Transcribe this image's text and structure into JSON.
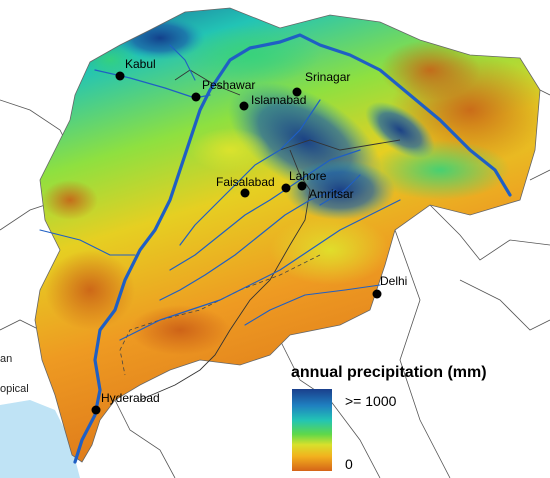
{
  "legend": {
    "title": "annual precipitation (mm)",
    "max_label": ">= 1000",
    "min_label": "0",
    "colors": [
      "#1a3f8c",
      "#1f7fc0",
      "#22c4b5",
      "#3fd86a",
      "#c8e832",
      "#f2c21e",
      "#ee8a20",
      "#d56418"
    ]
  },
  "edge_labels": {
    "left_top": "an",
    "left_mid": "opical"
  },
  "cities": [
    {
      "name": "Kabul"
    },
    {
      "name": "Peshawar"
    },
    {
      "name": "Islamabad"
    },
    {
      "name": "Srinagar"
    },
    {
      "name": "Faisalabad"
    },
    {
      "name": "Lahore"
    },
    {
      "name": "Amritsar"
    },
    {
      "name": "Delhi"
    },
    {
      "name": "Hyderabad"
    }
  ],
  "colors": {
    "river": "#1f5fc4",
    "sea": "#bfe3f5",
    "border": "#555555"
  }
}
